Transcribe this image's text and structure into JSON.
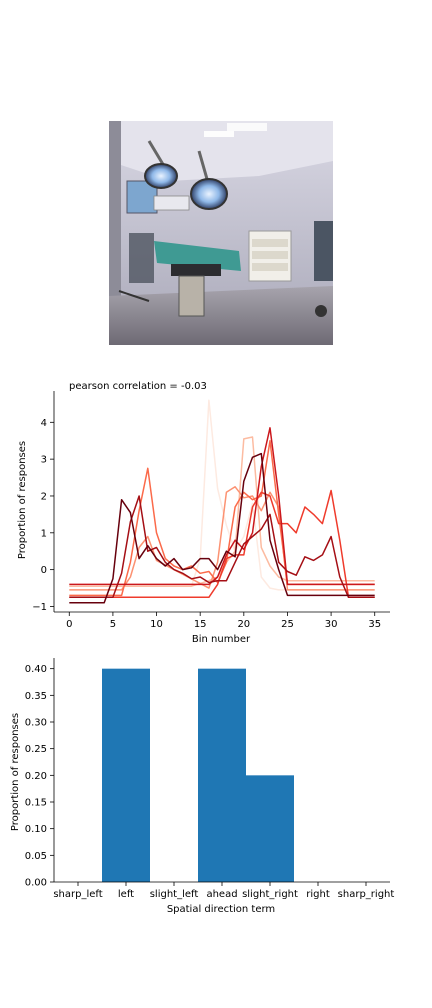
{
  "image": {
    "icon": "operating-room-photo",
    "colors": {
      "wall": "#c9c9d9",
      "ceiling": "#dcdbe6",
      "floor": "#8d8a93",
      "table": "#3f9a93",
      "lamp": "#8fb8e8"
    }
  },
  "chart_data": [
    {
      "type": "line",
      "title": "pearson correlation = -0.03",
      "xlabel": "Bin number",
      "ylabel": "Proportion of responses",
      "xlim": [
        -1.75,
        36.75
      ],
      "ylim": [
        -1.15,
        4.85
      ],
      "xticks": [
        0,
        5,
        10,
        15,
        20,
        25,
        30,
        35
      ],
      "yticks": [
        -1,
        0,
        1,
        2,
        3,
        4
      ],
      "grid": false,
      "series": [
        {
          "color": "#fdeae1",
          "x": [
            0,
            14,
            15,
            16,
            17,
            18,
            19,
            20,
            21,
            22,
            23,
            24,
            25,
            35
          ],
          "y": [
            -0.45,
            -0.45,
            0.3,
            4.6,
            2.2,
            1.2,
            0.5,
            0.9,
            1.8,
            -0.2,
            -0.5,
            -0.55,
            -0.55,
            -0.55
          ]
        },
        {
          "color": "#fcbba1",
          "x": [
            0,
            14,
            16,
            17,
            18,
            19,
            20,
            21,
            22,
            23,
            24,
            25,
            35
          ],
          "y": [
            -0.45,
            -0.45,
            -0.3,
            -0.2,
            0.2,
            0.5,
            3.55,
            3.6,
            0.6,
            0.1,
            -0.2,
            -0.3,
            -0.3
          ]
        },
        {
          "color": "#fc9272",
          "x": [
            0,
            6,
            7,
            8,
            9,
            10,
            16,
            17,
            18,
            19,
            20,
            21,
            22,
            23,
            24,
            25,
            35
          ],
          "y": [
            -0.55,
            -0.55,
            -0.2,
            0.6,
            0.9,
            0.25,
            -0.5,
            0.2,
            2.1,
            2.25,
            1.95,
            2.0,
            1.6,
            2.1,
            1.7,
            -0.55,
            -0.55
          ]
        },
        {
          "color": "#fb6a4a",
          "x": [
            0,
            6,
            7,
            8,
            9,
            10,
            11,
            12,
            13,
            14,
            15,
            16,
            17,
            18,
            19,
            20,
            21,
            22,
            23,
            24,
            25,
            35
          ],
          "y": [
            -0.7,
            -0.7,
            0.2,
            1.6,
            2.75,
            1.0,
            0.3,
            0.1,
            0.0,
            0.1,
            -0.1,
            -0.05,
            -0.35,
            0.2,
            1.7,
            2.1,
            1.9,
            2.0,
            3.5,
            1.5,
            -0.4,
            -0.4
          ]
        },
        {
          "color": "#ef3b2c",
          "x": [
            0,
            14,
            16,
            17,
            18,
            19,
            20,
            21,
            22,
            23,
            24,
            25,
            26,
            27,
            28,
            29,
            30,
            31,
            32,
            35
          ],
          "y": [
            -0.75,
            -0.75,
            -0.75,
            -0.4,
            0.3,
            0.4,
            0.4,
            1.7,
            2.1,
            2.0,
            1.25,
            1.25,
            1.0,
            1.7,
            1.5,
            1.25,
            2.15,
            0.8,
            -0.75,
            -0.75
          ]
        },
        {
          "color": "#cb181d",
          "x": [
            0,
            15,
            16,
            17,
            18,
            19,
            20,
            21,
            22,
            23,
            24,
            25,
            35
          ],
          "y": [
            -0.4,
            -0.4,
            -0.4,
            -0.2,
            0.4,
            0.8,
            0.55,
            1.0,
            2.8,
            3.85,
            2.0,
            -0.4,
            -0.4
          ]
        },
        {
          "color": "#a50f15",
          "x": [
            0,
            5,
            6,
            7,
            8,
            9,
            10,
            11,
            12,
            13,
            14,
            15,
            16,
            17,
            18,
            19,
            20,
            21,
            22,
            23,
            24,
            25,
            26,
            27,
            28,
            29,
            30,
            31,
            32,
            35
          ],
          "y": [
            -0.75,
            -0.75,
            -0.1,
            1.3,
            2.0,
            0.5,
            0.6,
            0.2,
            0.0,
            -0.1,
            -0.25,
            -0.2,
            -0.35,
            -0.3,
            -0.3,
            0.2,
            0.7,
            0.9,
            1.1,
            1.5,
            0.2,
            -0.05,
            -0.15,
            0.35,
            0.25,
            0.4,
            0.9,
            -0.2,
            -0.75,
            -0.75
          ]
        },
        {
          "color": "#67000d",
          "x": [
            0,
            4,
            5,
            6,
            7,
            8,
            9,
            10,
            11,
            12,
            13,
            14,
            15,
            16,
            17,
            18,
            19,
            20,
            21,
            22,
            23,
            24,
            25,
            35
          ],
          "y": [
            -0.9,
            -0.9,
            -0.25,
            1.9,
            1.55,
            0.3,
            0.65,
            0.3,
            0.1,
            0.3,
            0.0,
            0.05,
            0.3,
            0.3,
            0.0,
            0.5,
            0.35,
            2.4,
            3.05,
            3.15,
            0.8,
            0.0,
            -0.7,
            -0.7
          ]
        }
      ]
    },
    {
      "type": "bar",
      "xlabel": "Spatial direction term",
      "ylabel": "Proportion of responses",
      "categories": [
        "sharp_left",
        "left",
        "slight_left",
        "ahead",
        "slight_right",
        "right",
        "sharp_right"
      ],
      "values": [
        0.0,
        0.4,
        0.0,
        0.4,
        0.2,
        0.0,
        0.0
      ],
      "ylim": [
        0,
        0.42
      ],
      "yticks": [
        "0.00",
        "0.05",
        "0.10",
        "0.15",
        "0.20",
        "0.25",
        "0.30",
        "0.35",
        "0.40"
      ],
      "color": "#1f77b4",
      "grid": false
    }
  ]
}
